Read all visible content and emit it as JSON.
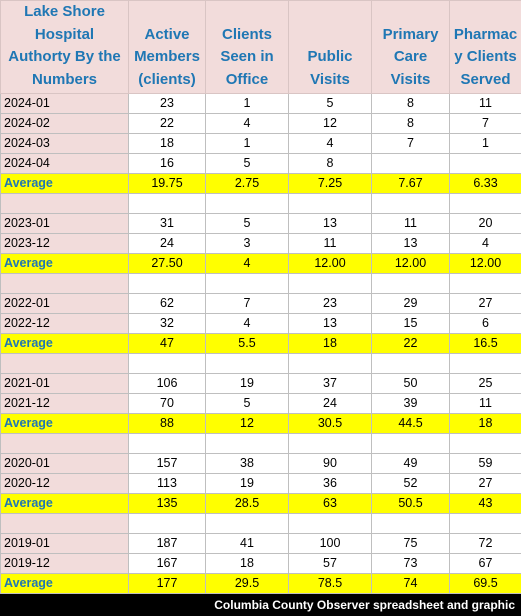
{
  "header": {
    "label": "Lake Shore Hospital Authorty By the Numbers",
    "columns": [
      "Active Members (clients)",
      "Clients Seen in Office",
      "Public Visits",
      "Primary Care Visits",
      "Pharmac y Clients Served"
    ]
  },
  "groups": [
    {
      "rows": [
        {
          "label": "2024-01",
          "values": [
            "23",
            "1",
            "5",
            "8",
            "11"
          ]
        },
        {
          "label": "2024-02",
          "values": [
            "22",
            "4",
            "12",
            "8",
            "7"
          ]
        },
        {
          "label": "2024-03",
          "values": [
            "18",
            "1",
            "4",
            "7",
            "1"
          ]
        },
        {
          "label": "2024-04",
          "values": [
            "16",
            "5",
            "8",
            "",
            ""
          ]
        }
      ],
      "average": {
        "label": "Average",
        "values": [
          "19.75",
          "2.75",
          "7.25",
          "7.67",
          "6.33"
        ]
      }
    },
    {
      "rows": [
        {
          "label": "2023-01",
          "values": [
            "31",
            "5",
            "13",
            "11",
            "20"
          ]
        },
        {
          "label": "2023-12",
          "values": [
            "24",
            "3",
            "11",
            "13",
            "4"
          ]
        }
      ],
      "average": {
        "label": "Average",
        "values": [
          "27.50",
          "4",
          "12.00",
          "12.00",
          "12.00"
        ]
      }
    },
    {
      "rows": [
        {
          "label": "2022-01",
          "values": [
            "62",
            "7",
            "23",
            "29",
            "27"
          ]
        },
        {
          "label": "2022-12",
          "values": [
            "32",
            "4",
            "13",
            "15",
            "6"
          ]
        }
      ],
      "average": {
        "label": "Average",
        "values": [
          "47",
          "5.5",
          "18",
          "22",
          "16.5"
        ]
      }
    },
    {
      "rows": [
        {
          "label": "2021-01",
          "values": [
            "106",
            "19",
            "37",
            "50",
            "25"
          ]
        },
        {
          "label": "2021-12",
          "values": [
            "70",
            "5",
            "24",
            "39",
            "11"
          ]
        }
      ],
      "average": {
        "label": "Average",
        "values": [
          "88",
          "12",
          "30.5",
          "44.5",
          "18"
        ]
      }
    },
    {
      "rows": [
        {
          "label": "2020-01",
          "values": [
            "157",
            "38",
            "90",
            "49",
            "59"
          ]
        },
        {
          "label": "2020-12",
          "values": [
            "113",
            "19",
            "36",
            "52",
            "27"
          ]
        }
      ],
      "average": {
        "label": "Average",
        "values": [
          "135",
          "28.5",
          "63",
          "50.5",
          "43"
        ]
      }
    },
    {
      "rows": [
        {
          "label": "2019-01",
          "values": [
            "187",
            "41",
            "100",
            "75",
            "72"
          ]
        },
        {
          "label": "2019-12",
          "values": [
            "167",
            "18",
            "57",
            "73",
            "67"
          ]
        }
      ],
      "average": {
        "label": "Average",
        "values": [
          "177",
          "29.5",
          "78.5",
          "74",
          "69.5"
        ]
      }
    }
  ],
  "caption": "Columbia County Observer spreadsheet and graphic",
  "colors": {
    "header_bg": "#f2dcdb",
    "header_text": "#1f77b4",
    "average_bg": "#ffff00",
    "caption_bg": "#000000"
  }
}
